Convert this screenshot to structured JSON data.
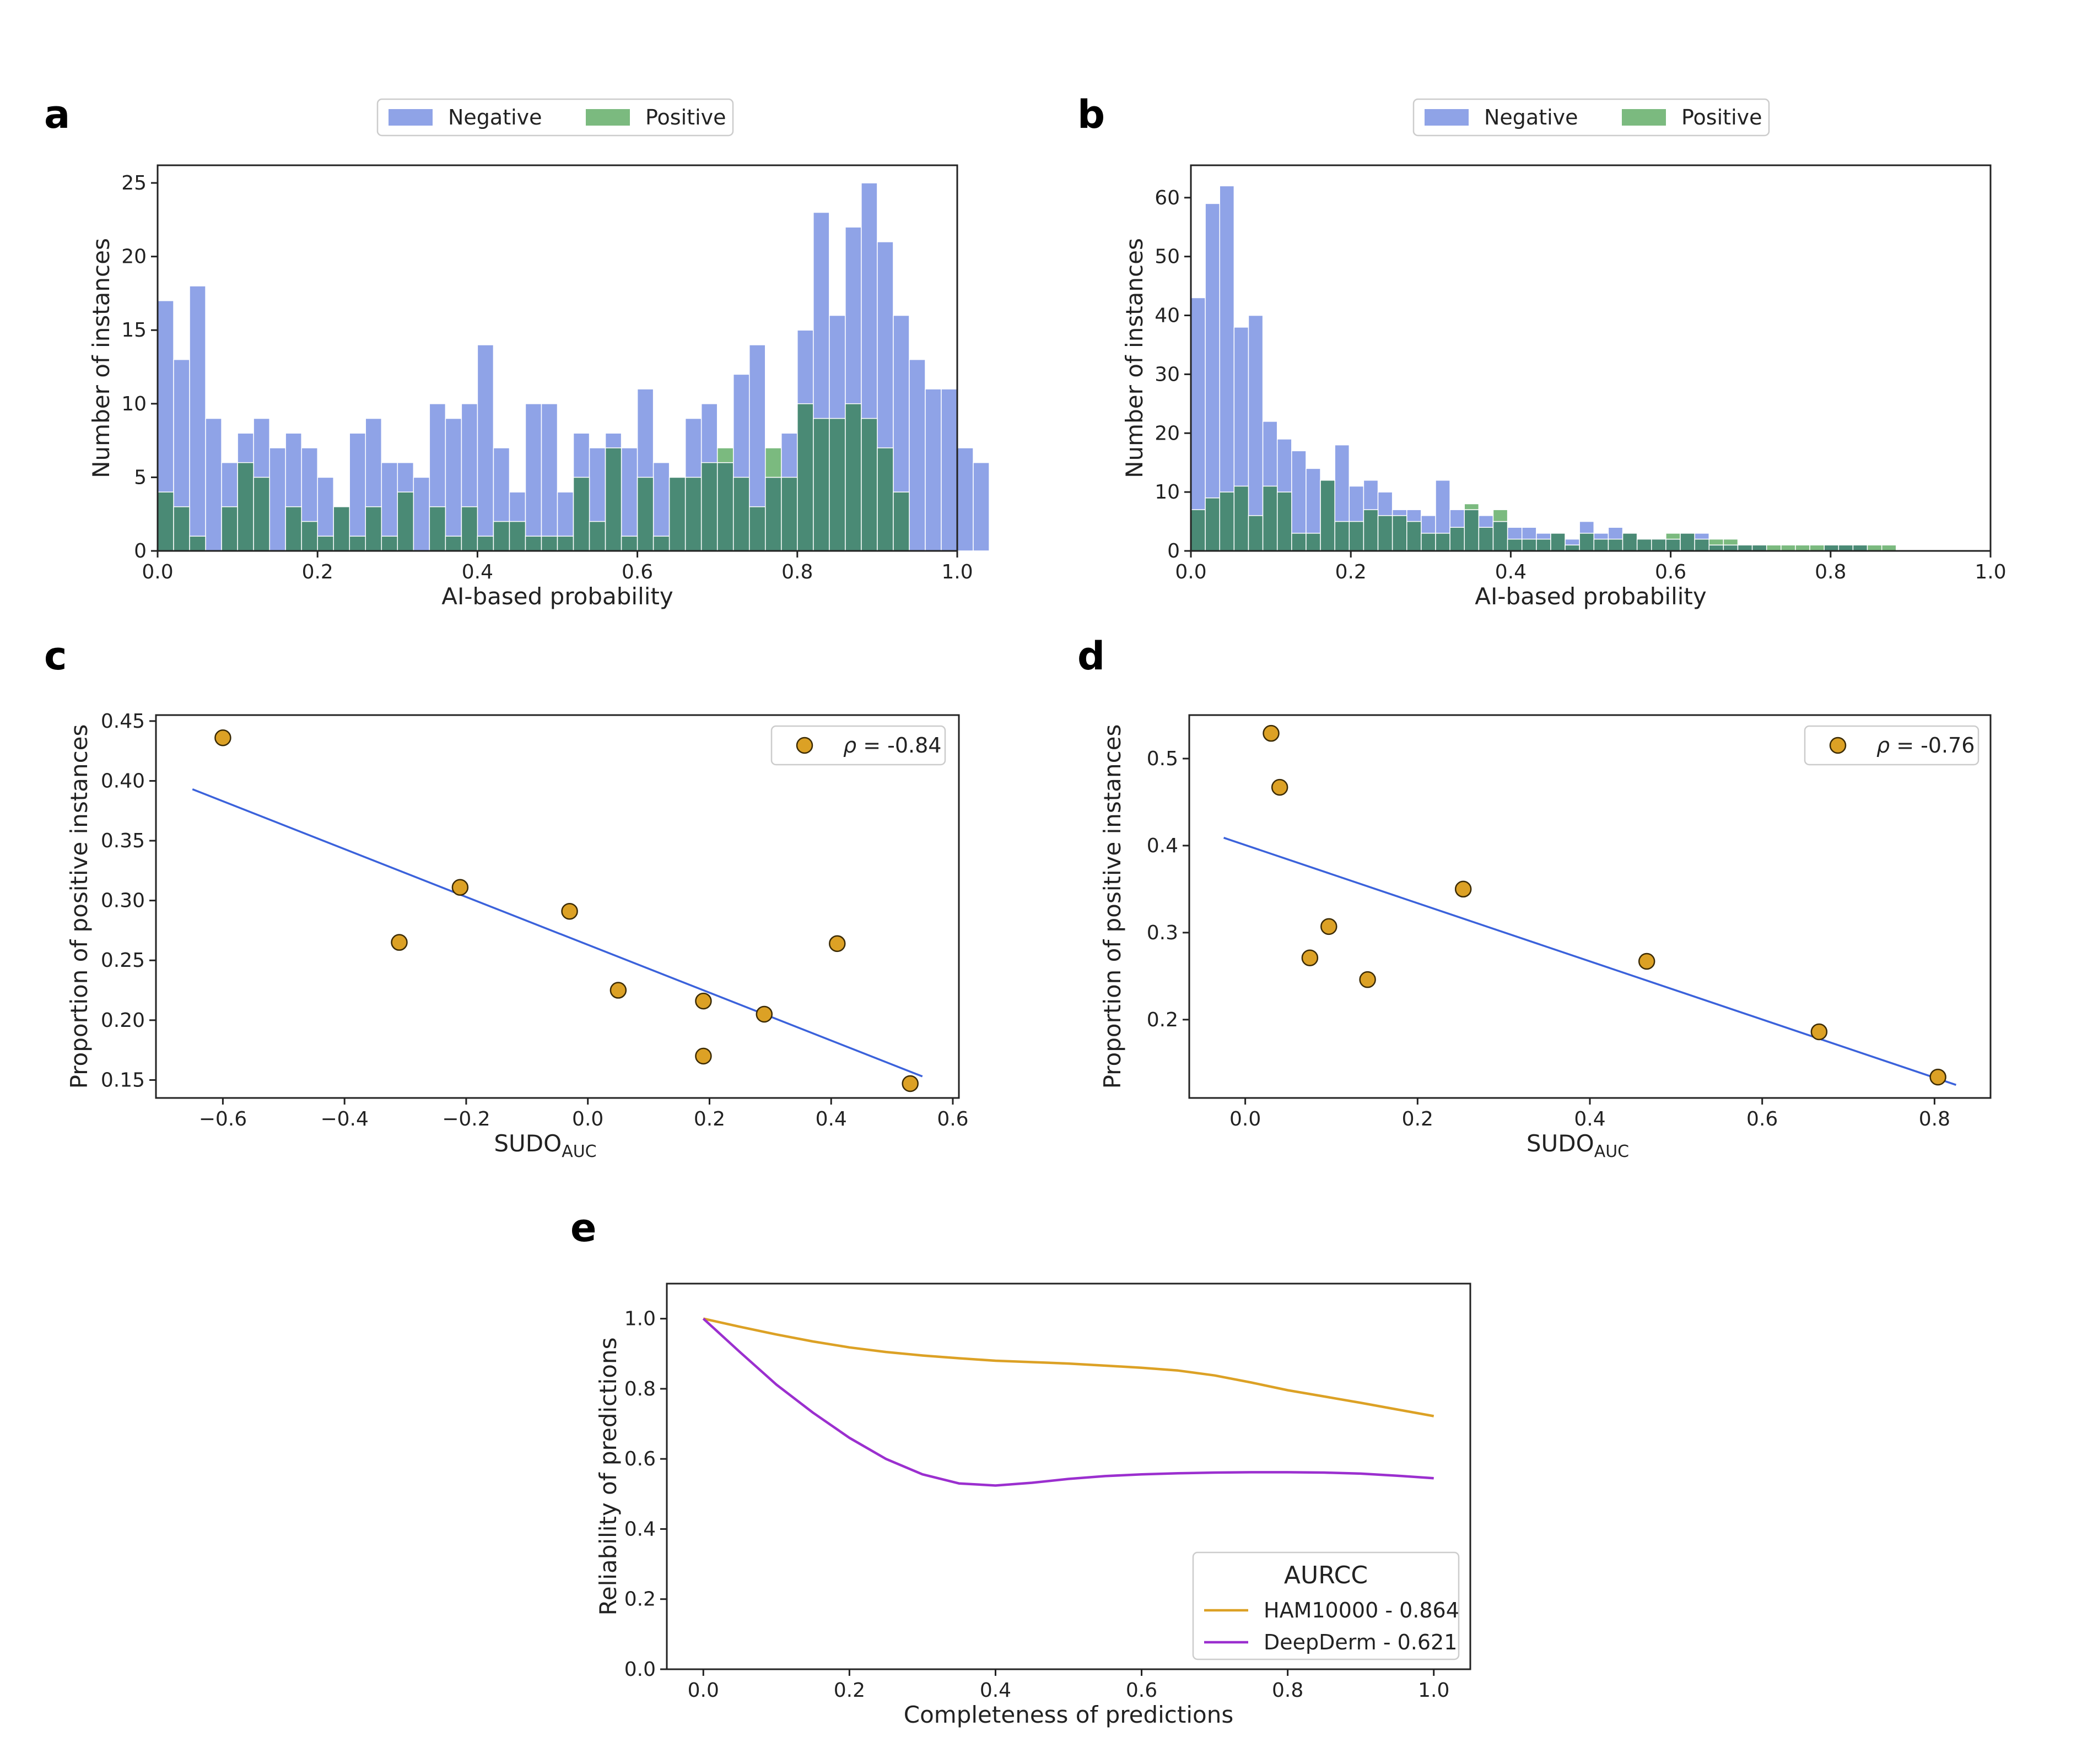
{
  "colors": {
    "negative": "#7b93e3",
    "positive": "#5aa95f",
    "overlap": "#4a8a75",
    "scatter": "#dca125",
    "fit": "#3b62db",
    "ham": "#dca125",
    "deep": "#9b2fcf"
  },
  "chart_data": [
    {
      "id": "a",
      "type": "bar",
      "subtype": "histogram",
      "xlabel": "AI-based probability",
      "ylabel": "Number of instances",
      "xlim": [
        0,
        1
      ],
      "ylim": [
        0,
        26.2
      ],
      "xticks": [
        "0.0",
        "0.2",
        "0.4",
        "0.6",
        "0.8",
        "1.0"
      ],
      "yticks": [
        "0",
        "5",
        "10",
        "15",
        "20",
        "25"
      ],
      "bin_width": 0.02,
      "legend": [
        "Negative",
        "Positive"
      ],
      "series": [
        {
          "name": "Negative",
          "values": [
            17,
            13,
            18,
            9,
            6,
            8,
            9,
            7,
            8,
            7,
            5,
            3,
            8,
            9,
            6,
            6,
            5,
            10,
            9,
            10,
            14,
            7,
            4,
            10,
            10,
            4,
            8,
            7,
            8,
            7,
            11,
            6,
            5,
            9,
            10,
            6,
            12,
            14,
            5,
            8,
            15,
            23,
            16,
            22,
            25,
            21,
            16,
            13,
            11,
            11,
            7,
            6
          ]
        },
        {
          "name": "Positive",
          "values": [
            4,
            3,
            1,
            0,
            3,
            6,
            5,
            0,
            3,
            2,
            1,
            3,
            1,
            3,
            1,
            4,
            0,
            3,
            1,
            3,
            1,
            2,
            2,
            1,
            1,
            1,
            5,
            2,
            7,
            1,
            5,
            1,
            5,
            5,
            6,
            7,
            5,
            3,
            7,
            5,
            10,
            9,
            9,
            10,
            9,
            7,
            4
          ]
        }
      ]
    },
    {
      "id": "b",
      "type": "bar",
      "subtype": "histogram",
      "xlabel": "AI-based probability",
      "ylabel": "Number of instances",
      "xlim": [
        0,
        1
      ],
      "ylim": [
        0,
        65.5
      ],
      "xticks": [
        "0.0",
        "0.2",
        "0.4",
        "0.6",
        "0.8",
        "1.0"
      ],
      "yticks": [
        "0",
        "10",
        "20",
        "30",
        "40",
        "50",
        "60"
      ],
      "bin_width": 0.018,
      "legend": [
        "Negative",
        "Positive"
      ],
      "series": [
        {
          "name": "Negative",
          "values": [
            43,
            59,
            62,
            38,
            40,
            22,
            19,
            17,
            14,
            12,
            18,
            11,
            12,
            10,
            7,
            7,
            6,
            12,
            7,
            7,
            6,
            5,
            4,
            4,
            3,
            3,
            2,
            5,
            3,
            4,
            3,
            2,
            2,
            2,
            3,
            3,
            1,
            1,
            1,
            1,
            0,
            0,
            0,
            0,
            1,
            1,
            1,
            0,
            0,
            0
          ]
        },
        {
          "name": "Positive",
          "values": [
            7,
            9,
            10,
            11,
            6,
            11,
            10,
            3,
            3,
            12,
            5,
            5,
            7,
            6,
            6,
            5,
            3,
            3,
            4,
            8,
            4,
            7,
            2,
            2,
            2,
            3,
            1,
            3,
            2,
            2,
            3,
            2,
            2,
            3,
            3,
            2,
            2,
            2,
            1,
            1,
            1,
            1,
            1,
            1,
            1,
            1,
            1,
            1,
            1
          ]
        }
      ]
    },
    {
      "id": "c",
      "type": "scatter",
      "xlabel": "SUDO",
      "xlabel_sub": "AUC",
      "ylabel": "Proportion of positive instances",
      "xlim": [
        -0.71,
        0.61
      ],
      "ylim": [
        0.135,
        0.455
      ],
      "xticks": [
        -0.6,
        -0.4,
        -0.2,
        0.0,
        0.2,
        0.4,
        0.6
      ],
      "xtick_labels": [
        "−0.6",
        "−0.4",
        "−0.2",
        "0.0",
        "0.2",
        "0.4",
        "0.6"
      ],
      "yticks": [
        0.15,
        0.2,
        0.25,
        0.3,
        0.35,
        0.4,
        0.45
      ],
      "ytick_labels": [
        "0.15",
        "0.20",
        "0.25",
        "0.30",
        "0.35",
        "0.40",
        "0.45"
      ],
      "legend_label": "ρ = -0.84",
      "legend_rho": "ρ",
      "legend_value": " = -0.84",
      "points": [
        [
          -0.6,
          0.436
        ],
        [
          -0.31,
          0.265
        ],
        [
          -0.21,
          0.311
        ],
        [
          -0.03,
          0.291
        ],
        [
          0.05,
          0.225
        ],
        [
          0.19,
          0.216
        ],
        [
          0.19,
          0.17
        ],
        [
          0.29,
          0.205
        ],
        [
          0.41,
          0.264
        ],
        [
          0.53,
          0.147
        ]
      ],
      "fit": [
        [
          -0.65,
          0.393
        ],
        [
          0.55,
          0.153
        ]
      ]
    },
    {
      "id": "d",
      "type": "scatter",
      "xlabel": "SUDO",
      "xlabel_sub": "AUC",
      "ylabel": "Proportion of positive instances",
      "xlim": [
        -0.065,
        0.865
      ],
      "ylim": [
        0.11,
        0.55
      ],
      "xticks": [
        0.0,
        0.2,
        0.4,
        0.6,
        0.8
      ],
      "xtick_labels": [
        "0.0",
        "0.2",
        "0.4",
        "0.6",
        "0.8"
      ],
      "yticks": [
        0.2,
        0.3,
        0.4,
        0.5
      ],
      "ytick_labels": [
        "0.2",
        "0.3",
        "0.4",
        "0.5"
      ],
      "legend_label": "ρ = -0.76",
      "legend_rho": "ρ",
      "legend_value": " = -0.76",
      "points": [
        [
          0.03,
          0.529
        ],
        [
          0.04,
          0.467
        ],
        [
          0.075,
          0.271
        ],
        [
          0.097,
          0.307
        ],
        [
          0.142,
          0.246
        ],
        [
          0.253,
          0.35
        ],
        [
          0.466,
          0.267
        ],
        [
          0.666,
          0.186
        ],
        [
          0.804,
          0.134
        ]
      ],
      "fit": [
        [
          -0.025,
          0.409
        ],
        [
          0.825,
          0.125
        ]
      ]
    },
    {
      "id": "e",
      "type": "line",
      "xlabel": "Completeness of predictions",
      "ylabel": "Reliability of predictions",
      "xlim": [
        -0.05,
        1.05
      ],
      "ylim": [
        0.0,
        1.1
      ],
      "xticks": [
        "0.0",
        "0.2",
        "0.4",
        "0.6",
        "0.8",
        "1.0"
      ],
      "yticks": [
        "0.0",
        "0.2",
        "0.4",
        "0.6",
        "0.8",
        "1.0"
      ],
      "legend_title": "AURCC",
      "series": [
        {
          "name": "HAM10000 - 0.864",
          "x": [
            0,
            0.05,
            0.1,
            0.15,
            0.2,
            0.25,
            0.3,
            0.35,
            0.4,
            0.45,
            0.5,
            0.55,
            0.6,
            0.65,
            0.7,
            0.75,
            0.8,
            0.85,
            0.9,
            0.95,
            1.0
          ],
          "y": [
            1.0,
            0.977,
            0.955,
            0.935,
            0.918,
            0.905,
            0.895,
            0.887,
            0.88,
            0.876,
            0.872,
            0.866,
            0.86,
            0.852,
            0.838,
            0.818,
            0.796,
            0.778,
            0.76,
            0.741,
            0.722
          ]
        },
        {
          "name": "DeepDerm - 0.621",
          "x": [
            0,
            0.05,
            0.1,
            0.15,
            0.2,
            0.25,
            0.3,
            0.35,
            0.4,
            0.45,
            0.5,
            0.55,
            0.6,
            0.65,
            0.7,
            0.75,
            0.8,
            0.85,
            0.9,
            0.95,
            1.0
          ],
          "y": [
            1.0,
            0.905,
            0.812,
            0.732,
            0.66,
            0.6,
            0.556,
            0.53,
            0.524,
            0.532,
            0.543,
            0.551,
            0.556,
            0.559,
            0.561,
            0.562,
            0.562,
            0.561,
            0.558,
            0.552,
            0.545
          ]
        }
      ]
    }
  ]
}
